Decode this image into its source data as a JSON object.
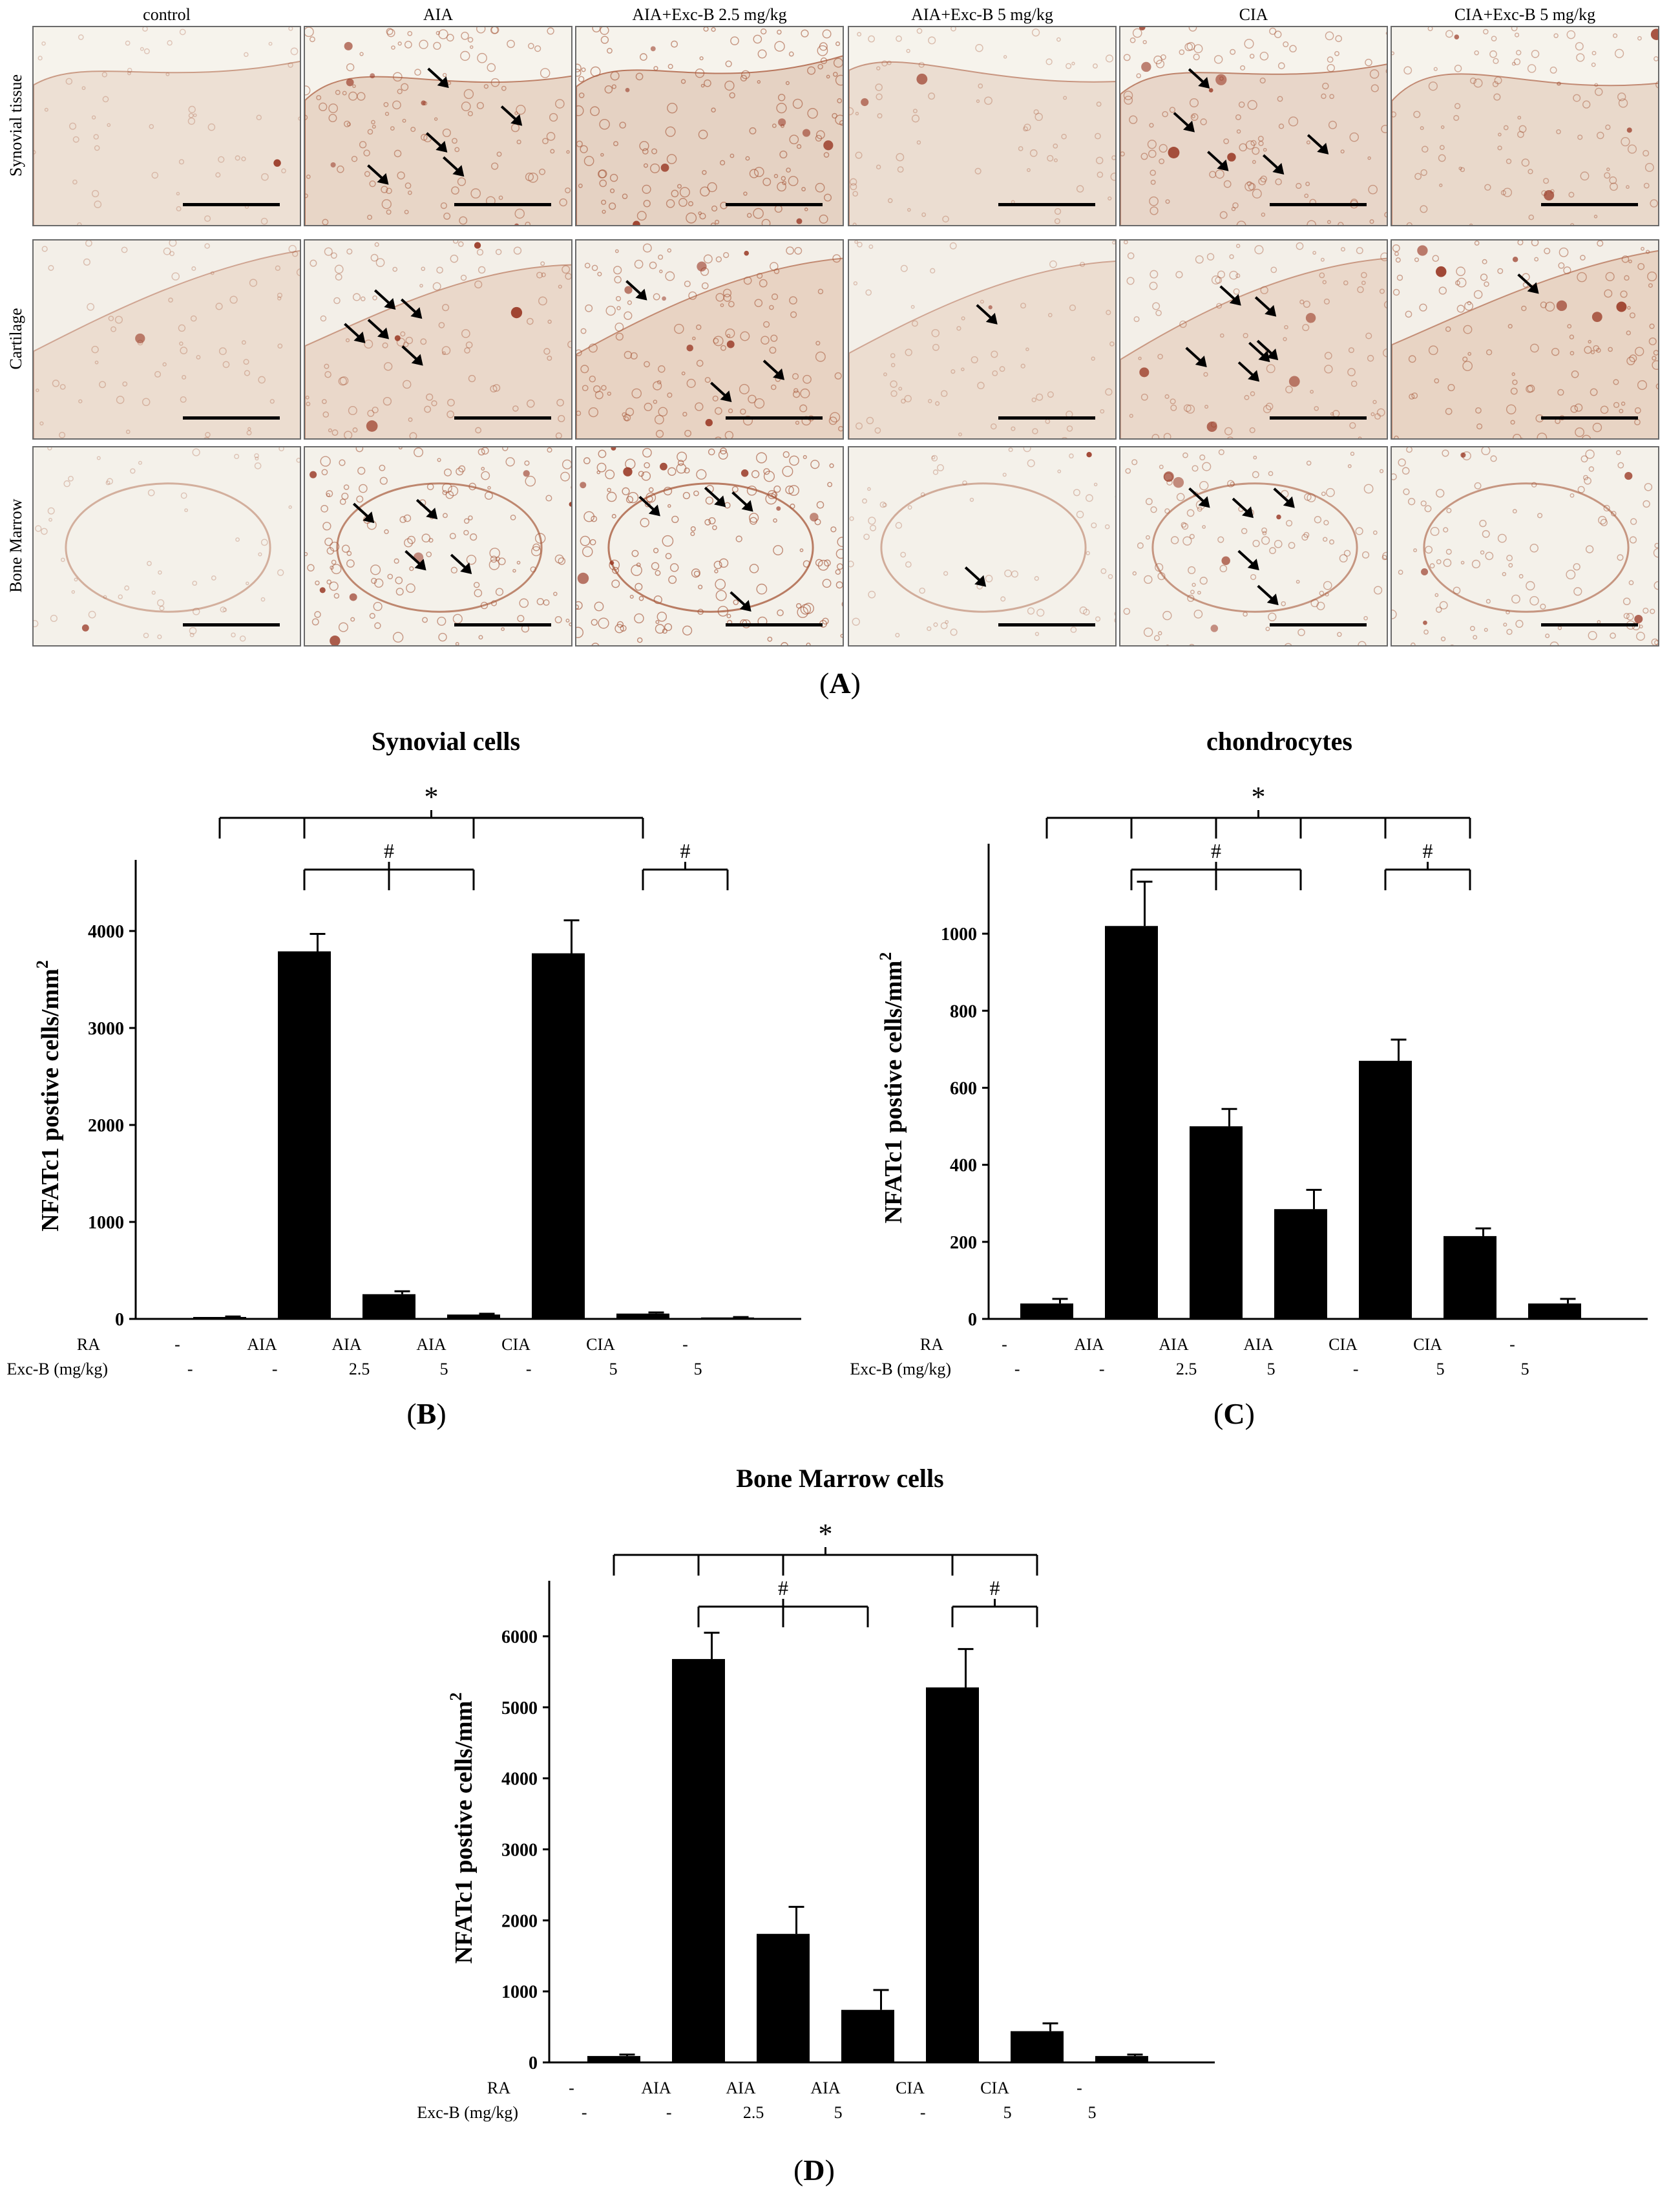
{
  "figure_a": {
    "columns": [
      "control",
      "AIA",
      "AIA+Exc-B 2.5 mg/kg",
      "AIA+Exc-B 5 mg/kg",
      "CIA",
      "CIA+Exc-B 5 mg/kg"
    ],
    "rows": [
      "Synovial tissue",
      "Cartilage",
      "Bone Marrow"
    ],
    "label_prefix": "(",
    "label_letter": "A",
    "label_suffix": ")",
    "arrows_per_panel": [
      [
        0,
        5,
        0,
        0,
        5,
        0
      ],
      [
        0,
        5,
        3,
        1,
        6,
        1
      ],
      [
        0,
        4,
        4,
        1,
        5,
        0
      ]
    ]
  },
  "common": {
    "ylabel": "NFATc1 postive cells/mm",
    "ylabel_sup": "2",
    "row1_label": "RA",
    "row2_label": "Exc-B (mg/kg)",
    "row1_values": [
      "-",
      "AIA",
      "AIA",
      "AIA",
      "CIA",
      "CIA",
      "-"
    ],
    "row2_values": [
      "-",
      "-",
      "2.5",
      "5",
      "-",
      "5",
      "5"
    ],
    "sig_star": "*",
    "sig_hash": "#",
    "bar_color": "#000000"
  },
  "chart_data": [
    {
      "type": "bar",
      "panel_letter": "B",
      "title": "Synovial cells",
      "categories": [
        "-/-",
        "AIA/-",
        "AIA/2.5",
        "AIA/5",
        "CIA/-",
        "CIA/5",
        "-/5"
      ],
      "values": [
        20,
        3790,
        255,
        45,
        3770,
        55,
        15
      ],
      "errors": [
        5,
        180,
        30,
        8,
        340,
        12,
        4
      ],
      "yticks": [
        0,
        1000,
        2000,
        3000,
        4000
      ],
      "ylim": [
        0,
        4600
      ],
      "grid": false,
      "legend": "none"
    },
    {
      "type": "bar",
      "panel_letter": "C",
      "title": "chondrocytes",
      "categories": [
        "-/-",
        "AIA/-",
        "AIA/2.5",
        "AIA/5",
        "CIA/-",
        "CIA/5",
        "-/5"
      ],
      "values": [
        40,
        1020,
        500,
        285,
        670,
        215,
        40
      ],
      "errors": [
        12,
        115,
        45,
        50,
        55,
        20,
        12
      ],
      "yticks": [
        0,
        200,
        400,
        600,
        800,
        1000
      ],
      "ylim": [
        0,
        1200
      ],
      "grid": false,
      "legend": "none"
    },
    {
      "type": "bar",
      "panel_letter": "D",
      "title": "Bone Marrow cells",
      "categories": [
        "-/-",
        "AIA/-",
        "AIA/2.5",
        "AIA/5",
        "CIA/-",
        "CIA/5",
        "-/5"
      ],
      "values": [
        90,
        5680,
        1810,
        740,
        5280,
        440,
        90
      ],
      "errors": [
        20,
        370,
        380,
        280,
        540,
        110,
        20
      ],
      "yticks": [
        0,
        1000,
        2000,
        3000,
        4000,
        5000,
        6000
      ],
      "ylim": [
        0,
        6600
      ],
      "grid": false,
      "legend": "none"
    }
  ]
}
